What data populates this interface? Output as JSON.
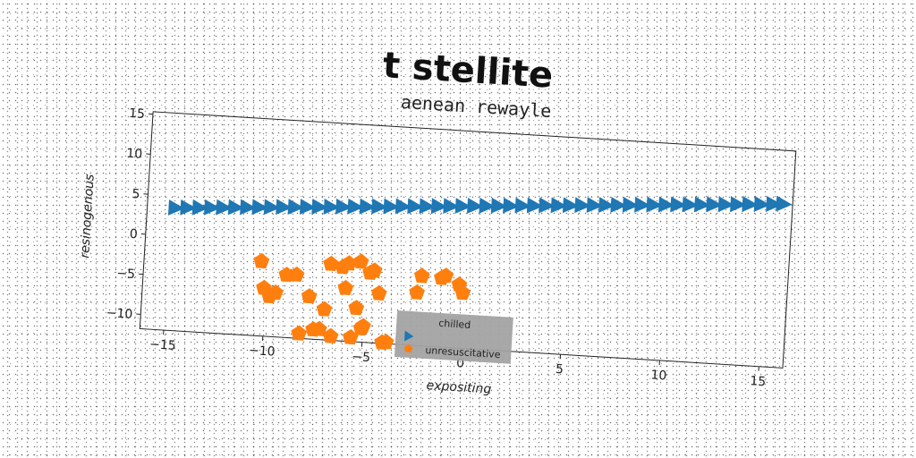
{
  "chart_data": {
    "type": "scatter",
    "title": "t stellite",
    "subtitle": "aenean rewayle",
    "xlabel": "expositing",
    "ylabel": "resinogenous",
    "xlim": [
      -16.2,
      16.2
    ],
    "ylim": [
      -11.8,
      15.3
    ],
    "xticks": [
      -15,
      -10,
      -5,
      0,
      5,
      10,
      15
    ],
    "yticks": [
      -10,
      -5,
      0,
      5,
      10,
      15
    ],
    "xtick_labels": [
      "−15",
      "−10",
      "−5",
      "0",
      "5",
      "10",
      "15"
    ],
    "ytick_labels": [
      "−10",
      "−5",
      "0",
      "5",
      "10",
      "15"
    ],
    "grid": false,
    "legend": {
      "title": "chilled",
      "placement": "lower center"
    },
    "series": [
      {
        "name": "",
        "marker": "triangle-right",
        "color": "#1f77b4",
        "x": [
          -14.8,
          -14.2,
          -13.6,
          -13.0,
          -12.4,
          -11.8,
          -11.2,
          -10.6,
          -10.0,
          -9.4,
          -8.8,
          -8.2,
          -7.6,
          -7.0,
          -6.4,
          -5.8,
          -5.2,
          -4.6,
          -4.0,
          -3.4,
          -2.8,
          -2.2,
          -1.6,
          -1.0,
          -0.4,
          0.2,
          0.8,
          1.4,
          2.0,
          2.6,
          3.2,
          3.8,
          4.4,
          5.0,
          5.6,
          6.2,
          6.8,
          7.4,
          8.0,
          8.6,
          9.2,
          9.8,
          10.4,
          11.0,
          11.6,
          12.2,
          12.8,
          13.4,
          14.0,
          14.6,
          15.2,
          15.7
        ],
        "y": [
          3.5,
          3.6,
          3.7,
          3.8,
          3.9,
          4.0,
          4.1,
          4.2,
          4.3,
          4.4,
          4.5,
          4.6,
          4.7,
          4.8,
          4.9,
          5.0,
          5.1,
          5.2,
          5.3,
          5.4,
          5.5,
          5.6,
          5.7,
          5.8,
          5.9,
          6.0,
          6.1,
          6.2,
          6.3,
          6.4,
          6.5,
          6.6,
          6.7,
          6.8,
          6.9,
          7.0,
          7.1,
          7.2,
          7.3,
          7.4,
          7.5,
          7.6,
          7.7,
          7.8,
          7.9,
          8.0,
          8.1,
          8.2,
          8.3,
          8.4,
          8.5,
          8.6
        ]
      },
      {
        "name": "unresuscitative",
        "marker": "pentagon",
        "color": "#ff7f0e",
        "x": [
          -10.3,
          -10.1,
          -9.8,
          -9.5,
          -9.0,
          -8.5,
          -8.2,
          -7.8,
          -7.5,
          -7.2,
          -7.0,
          -6.8,
          -6.6,
          -6.2,
          -6.0,
          -5.9,
          -5.6,
          -5.4,
          -5.3,
          -5.1,
          -5.0,
          -4.8,
          -4.6,
          -4.3,
          -4.0,
          -3.8,
          -2.4,
          -2.2,
          -1.2,
          -1.0,
          -0.3,
          -0.1
        ],
        "y": [
          -2.5,
          -5.8,
          -6.8,
          -6.3,
          -4.0,
          -3.9,
          -11.2,
          -6.5,
          -10.6,
          -10.5,
          -8.0,
          -2.3,
          -11.3,
          -2.6,
          -5.2,
          -2.1,
          -11.3,
          -7.6,
          -1.8,
          -10.1,
          -9.8,
          -3.1,
          -2.8,
          -5.6,
          -11.7,
          -11.6,
          -5.2,
          -3.1,
          -3.2,
          -2.9,
          -3.9,
          -4.9
        ]
      }
    ]
  }
}
